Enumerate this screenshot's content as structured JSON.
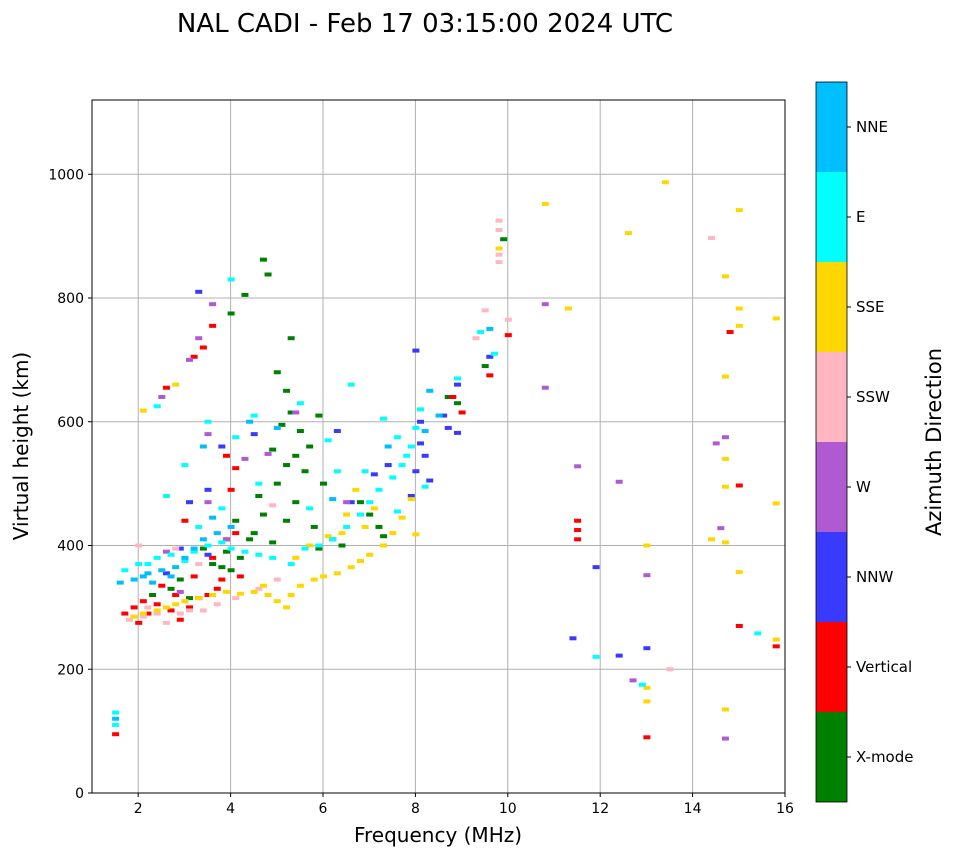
{
  "chart_data": {
    "type": "scatter",
    "title": "NAL CADI - Feb 17 03:15:00 2024 UTC",
    "xlabel": "Frequency (MHz)",
    "ylabel": "Virtual height (km)",
    "xlim": [
      1,
      16
    ],
    "ylim": [
      0,
      1120
    ],
    "xticks": [
      2,
      4,
      6,
      8,
      10,
      12,
      14,
      16
    ],
    "yticks": [
      0,
      200,
      400,
      600,
      800,
      1000
    ],
    "grid": true,
    "colorbar": {
      "label": "Azimuth Direction",
      "categories": [
        "X-mode",
        "Vertical",
        "NNW",
        "W",
        "SSW",
        "SSE",
        "E",
        "NNE"
      ],
      "colors": [
        "#008000",
        "#ff0000",
        "#3a3aff",
        "#b05ad2",
        "#ffb6c1",
        "#ffd700",
        "#00ffff",
        "#00bfff"
      ]
    },
    "series": [
      {
        "name": "X-mode",
        "points": [
          [
            4.7,
            862
          ],
          [
            4.8,
            838
          ],
          [
            4.3,
            805
          ],
          [
            4.0,
            775
          ],
          [
            5.0,
            680
          ],
          [
            5.2,
            650
          ],
          [
            5.3,
            615
          ],
          [
            5.1,
            595
          ],
          [
            5.5,
            585
          ],
          [
            4.9,
            555
          ],
          [
            5.2,
            530
          ],
          [
            5.6,
            520
          ],
          [
            4.6,
            480
          ],
          [
            5.4,
            470
          ],
          [
            4.7,
            450
          ],
          [
            5.2,
            440
          ],
          [
            5.8,
            430
          ],
          [
            4.5,
            420
          ],
          [
            4.2,
            380
          ],
          [
            3.6,
            370
          ],
          [
            3.8,
            365
          ],
          [
            4.0,
            360
          ],
          [
            2.7,
            330
          ],
          [
            2.3,
            320
          ],
          [
            3.1,
            315
          ],
          [
            5.9,
            395
          ],
          [
            6.2,
            410
          ],
          [
            6.4,
            400
          ],
          [
            7.2,
            430
          ],
          [
            7.3,
            415
          ],
          [
            8.7,
            640
          ],
          [
            8.9,
            630
          ],
          [
            9.5,
            690
          ],
          [
            9.9,
            895
          ],
          [
            5.7,
            560
          ],
          [
            5.9,
            610
          ],
          [
            3.4,
            395
          ],
          [
            3.9,
            390
          ],
          [
            2.9,
            345
          ],
          [
            4.4,
            410
          ],
          [
            6.8,
            470
          ],
          [
            7.0,
            450
          ],
          [
            5.0,
            500
          ],
          [
            4.1,
            440
          ],
          [
            5.3,
            735
          ],
          [
            4.9,
            405
          ],
          [
            5.4,
            545
          ],
          [
            6.0,
            500
          ]
        ]
      },
      {
        "name": "Vertical",
        "points": [
          [
            1.5,
            95
          ],
          [
            1.7,
            290
          ],
          [
            1.9,
            300
          ],
          [
            2.1,
            310
          ],
          [
            2.4,
            305
          ],
          [
            2.7,
            295
          ],
          [
            2.9,
            280
          ],
          [
            3.1,
            300
          ],
          [
            3.3,
            315
          ],
          [
            3.5,
            320
          ],
          [
            3.2,
            350
          ],
          [
            3.6,
            380
          ],
          [
            3.9,
            410
          ],
          [
            4.1,
            420
          ],
          [
            3.4,
            720
          ],
          [
            3.2,
            705
          ],
          [
            2.6,
            655
          ],
          [
            3.6,
            755
          ],
          [
            3.0,
            440
          ],
          [
            4.0,
            490
          ],
          [
            4.1,
            525
          ],
          [
            3.9,
            545
          ],
          [
            8.8,
            640
          ],
          [
            9.0,
            615
          ],
          [
            9.6,
            675
          ],
          [
            10.0,
            740
          ],
          [
            11.5,
            440
          ],
          [
            11.5,
            425
          ],
          [
            11.5,
            410
          ],
          [
            14.8,
            745
          ],
          [
            15.0,
            497
          ],
          [
            15.0,
            270
          ],
          [
            15.8,
            237
          ],
          [
            13.0,
            90
          ],
          [
            2.8,
            320
          ],
          [
            3.8,
            345
          ],
          [
            4.2,
            350
          ],
          [
            2.5,
            335
          ],
          [
            2.2,
            290
          ],
          [
            3.7,
            330
          ],
          [
            2.0,
            275
          ]
        ]
      },
      {
        "name": "NNW",
        "points": [
          [
            3.3,
            810
          ],
          [
            8.0,
            715
          ],
          [
            8.1,
            565
          ],
          [
            8.2,
            545
          ],
          [
            8.3,
            505
          ],
          [
            8.1,
            600
          ],
          [
            8.6,
            610
          ],
          [
            8.9,
            660
          ],
          [
            9.6,
            705
          ],
          [
            11.9,
            365
          ],
          [
            11.4,
            250
          ],
          [
            12.4,
            222
          ],
          [
            13.0,
            234
          ],
          [
            3.8,
            560
          ],
          [
            4.5,
            580
          ],
          [
            6.3,
            585
          ],
          [
            6.6,
            470
          ],
          [
            7.1,
            515
          ],
          [
            7.4,
            530
          ],
          [
            3.1,
            470
          ],
          [
            3.5,
            490
          ],
          [
            7.9,
            480
          ],
          [
            8.0,
            520
          ],
          [
            2.9,
            395
          ],
          [
            2.6,
            355
          ],
          [
            3.5,
            385
          ],
          [
            8.9,
            582
          ],
          [
            8.7,
            590
          ]
        ]
      },
      {
        "name": "W",
        "points": [
          [
            3.1,
            700
          ],
          [
            3.3,
            735
          ],
          [
            3.6,
            790
          ],
          [
            2.5,
            640
          ],
          [
            10.8,
            790
          ],
          [
            10.8,
            655
          ],
          [
            11.5,
            528
          ],
          [
            12.4,
            503
          ],
          [
            13.0,
            352
          ],
          [
            14.5,
            565
          ],
          [
            14.7,
            575
          ],
          [
            14.6,
            428
          ],
          [
            14.7,
            88
          ],
          [
            12.7,
            182
          ],
          [
            3.5,
            580
          ],
          [
            4.3,
            540
          ],
          [
            4.8,
            548
          ],
          [
            2.9,
            325
          ],
          [
            3.5,
            470
          ],
          [
            2.6,
            390
          ],
          [
            5.4,
            615
          ],
          [
            6.5,
            470
          ],
          [
            3.9,
            410
          ]
        ]
      },
      {
        "name": "SSW",
        "points": [
          [
            9.8,
            925
          ],
          [
            9.8,
            910
          ],
          [
            9.8,
            870
          ],
          [
            9.8,
            858
          ],
          [
            9.5,
            780
          ],
          [
            10.0,
            765
          ],
          [
            9.3,
            735
          ],
          [
            14.4,
            897
          ],
          [
            13.5,
            200
          ],
          [
            1.8,
            280
          ],
          [
            2.1,
            285
          ],
          [
            2.4,
            290
          ],
          [
            2.6,
            275
          ],
          [
            2.9,
            290
          ],
          [
            3.1,
            295
          ],
          [
            3.4,
            295
          ],
          [
            3.7,
            305
          ],
          [
            4.1,
            315
          ],
          [
            4.6,
            330
          ],
          [
            3.0,
            310
          ],
          [
            2.2,
            300
          ],
          [
            5.0,
            345
          ],
          [
            2.0,
            400
          ],
          [
            2.8,
            395
          ],
          [
            3.3,
            370
          ],
          [
            4.9,
            465
          ],
          [
            3.7,
            420
          ]
        ]
      },
      {
        "name": "SSE",
        "points": [
          [
            1.9,
            285
          ],
          [
            2.1,
            290
          ],
          [
            2.4,
            295
          ],
          [
            2.6,
            300
          ],
          [
            2.8,
            305
          ],
          [
            3.0,
            310
          ],
          [
            3.3,
            315
          ],
          [
            3.6,
            320
          ],
          [
            3.9,
            325
          ],
          [
            4.2,
            322
          ],
          [
            4.5,
            325
          ],
          [
            4.8,
            320
          ],
          [
            5.0,
            310
          ],
          [
            5.3,
            320
          ],
          [
            5.5,
            335
          ],
          [
            5.8,
            345
          ],
          [
            6.0,
            350
          ],
          [
            6.3,
            355
          ],
          [
            6.6,
            365
          ],
          [
            6.8,
            375
          ],
          [
            7.0,
            385
          ],
          [
            7.3,
            400
          ],
          [
            7.5,
            420
          ],
          [
            7.7,
            445
          ],
          [
            7.9,
            475
          ],
          [
            6.9,
            430
          ],
          [
            6.5,
            450
          ],
          [
            7.1,
            460
          ],
          [
            6.7,
            490
          ],
          [
            6.4,
            420
          ],
          [
            6.1,
            415
          ],
          [
            5.7,
            400
          ],
          [
            5.4,
            380
          ],
          [
            13.4,
            987
          ],
          [
            10.8,
            952
          ],
          [
            12.6,
            905
          ],
          [
            15.0,
            942
          ],
          [
            14.7,
            835
          ],
          [
            15.0,
            783
          ],
          [
            15.0,
            755
          ],
          [
            15.8,
            767
          ],
          [
            14.7,
            673
          ],
          [
            14.7,
            540
          ],
          [
            14.7,
            495
          ],
          [
            15.8,
            468
          ],
          [
            14.4,
            410
          ],
          [
            14.7,
            405
          ],
          [
            13.0,
            400
          ],
          [
            15.0,
            357
          ],
          [
            15.8,
            248
          ],
          [
            13.0,
            170
          ],
          [
            13.0,
            148
          ],
          [
            14.7,
            135
          ],
          [
            11.3,
            783
          ],
          [
            2.1,
            618
          ],
          [
            2.8,
            660
          ],
          [
            9.8,
            880
          ],
          [
            8.0,
            418
          ],
          [
            5.2,
            300
          ],
          [
            4.7,
            335
          ]
        ]
      },
      {
        "name": "E",
        "points": [
          [
            1.5,
            130
          ],
          [
            1.5,
            110
          ],
          [
            1.7,
            360
          ],
          [
            2.0,
            370
          ],
          [
            2.2,
            370
          ],
          [
            2.4,
            380
          ],
          [
            2.7,
            385
          ],
          [
            3.0,
            375
          ],
          [
            3.2,
            390
          ],
          [
            3.5,
            400
          ],
          [
            3.8,
            405
          ],
          [
            4.0,
            395
          ],
          [
            4.3,
            390
          ],
          [
            4.6,
            385
          ],
          [
            4.9,
            380
          ],
          [
            5.3,
            370
          ],
          [
            5.6,
            395
          ],
          [
            5.9,
            400
          ],
          [
            6.2,
            410
          ],
          [
            6.5,
            430
          ],
          [
            6.8,
            450
          ],
          [
            7.0,
            470
          ],
          [
            7.2,
            490
          ],
          [
            7.5,
            510
          ],
          [
            7.7,
            530
          ],
          [
            7.9,
            560
          ],
          [
            8.0,
            590
          ],
          [
            8.1,
            620
          ],
          [
            4.0,
            830
          ],
          [
            2.4,
            625
          ],
          [
            3.5,
            600
          ],
          [
            4.1,
            575
          ],
          [
            4.5,
            610
          ],
          [
            5.5,
            630
          ],
          [
            6.1,
            570
          ],
          [
            6.6,
            660
          ],
          [
            7.3,
            605
          ],
          [
            7.6,
            575
          ],
          [
            8.2,
            495
          ],
          [
            9.4,
            745
          ],
          [
            9.7,
            710
          ],
          [
            11.9,
            220
          ],
          [
            12.9,
            175
          ],
          [
            15.4,
            258
          ],
          [
            3.3,
            430
          ],
          [
            3.8,
            460
          ],
          [
            4.6,
            500
          ],
          [
            5.7,
            460
          ],
          [
            6.3,
            520
          ],
          [
            6.9,
            520
          ],
          [
            7.8,
            545
          ],
          [
            2.6,
            480
          ],
          [
            3.0,
            530
          ],
          [
            7.6,
            455
          ],
          [
            8.9,
            670
          ]
        ]
      },
      {
        "name": "NNE",
        "points": [
          [
            1.5,
            120
          ],
          [
            1.6,
            340
          ],
          [
            1.9,
            345
          ],
          [
            2.2,
            355
          ],
          [
            2.5,
            360
          ],
          [
            2.8,
            365
          ],
          [
            3.0,
            380
          ],
          [
            3.2,
            395
          ],
          [
            3.4,
            410
          ],
          [
            3.7,
            420
          ],
          [
            4.0,
            430
          ],
          [
            2.3,
            340
          ],
          [
            2.7,
            350
          ],
          [
            3.4,
            560
          ],
          [
            7.4,
            560
          ],
          [
            8.2,
            585
          ],
          [
            8.5,
            610
          ],
          [
            9.6,
            750
          ],
          [
            8.3,
            650
          ],
          [
            4.4,
            600
          ],
          [
            5.0,
            590
          ],
          [
            2.1,
            350
          ],
          [
            3.6,
            445
          ],
          [
            6.2,
            475
          ]
        ]
      }
    ]
  }
}
